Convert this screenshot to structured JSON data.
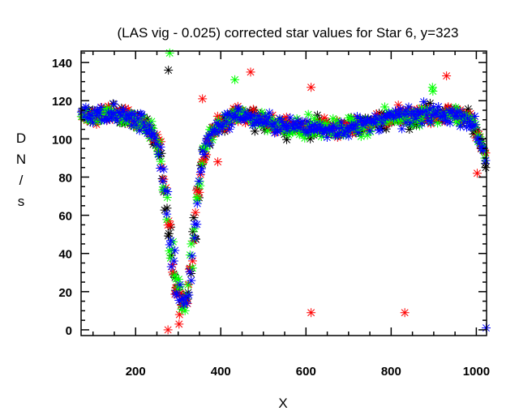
{
  "chart_data": {
    "type": "scatter",
    "title": "(LAS vig - 0.025) corrected star values for Star 6, y=323",
    "xlabel": "X",
    "ylabel": "D N / s",
    "ylabel_chars": [
      "D",
      "N",
      "/",
      "s"
    ],
    "xlim": [
      72,
      1024
    ],
    "ylim": [
      -3,
      146
    ],
    "xticks": [
      200,
      400,
      600,
      800,
      1000
    ],
    "xtick_labels": [
      "200",
      "400",
      "600",
      "800",
      "1000"
    ],
    "xminor_step": 50,
    "yticks": [
      0,
      20,
      40,
      60,
      80,
      100,
      120,
      140
    ],
    "ytick_labels": [
      "0",
      "20",
      "40",
      "60",
      "80",
      "100",
      "120",
      "140"
    ],
    "yminor_step": 5,
    "grid": false,
    "legend": "none",
    "marker": "asterisk",
    "series_colors": {
      "black": "#000000",
      "red": "#ff0000",
      "green": "#00ff00",
      "blue": "#0000ff"
    },
    "profile": {
      "description": "Star values vs X: plateau ~112 from 72-220, deep dip to ~10-20 near x=290-310, recovery to ~110 by x=380, plateau ~108-115 to x=980, drop to ~92 at x=1020",
      "x": [
        72,
        100,
        150,
        200,
        220,
        240,
        255,
        265,
        275,
        285,
        295,
        305,
        315,
        325,
        335,
        345,
        355,
        370,
        390,
        420,
        450,
        480,
        520,
        560,
        600,
        650,
        700,
        750,
        800,
        850,
        900,
        950,
        980,
        1000,
        1020
      ],
      "y": [
        112,
        113,
        113,
        110,
        108,
        103,
        95,
        82,
        62,
        40,
        22,
        16,
        15,
        22,
        42,
        65,
        88,
        100,
        106,
        110,
        113,
        110,
        108,
        107,
        106,
        105,
        106,
        108,
        111,
        112,
        113,
        113,
        111,
        104,
        92
      ]
    },
    "series": [
      {
        "name": "black",
        "color": "#000000",
        "outliers": [
          [
            277,
            136
          ],
          [
            1022,
            85
          ]
        ]
      },
      {
        "name": "red",
        "color": "#ff0000",
        "outliers": [
          [
            357,
            121
          ],
          [
            470,
            135
          ],
          [
            612,
            127
          ],
          [
            612,
            9
          ],
          [
            832,
            9
          ],
          [
            930,
            133
          ],
          [
            1002,
            82
          ],
          [
            276,
            0
          ],
          [
            302,
            3
          ],
          [
            303,
            8
          ],
          [
            393,
            88
          ]
        ]
      },
      {
        "name": "green",
        "color": "#00ff00",
        "outliers": [
          [
            280,
            145
          ],
          [
            433,
            131
          ],
          [
            897,
            127
          ],
          [
            898,
            125
          ]
        ]
      },
      {
        "name": "blue",
        "color": "#0000ff",
        "outliers": [
          [
            1023,
            1
          ]
        ]
      }
    ]
  }
}
